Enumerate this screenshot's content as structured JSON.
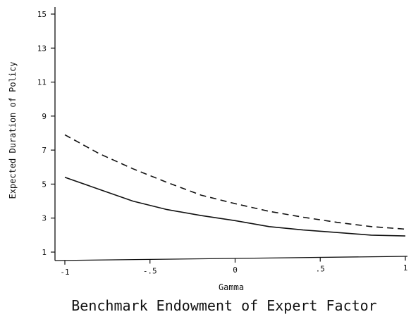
{
  "chart_data": {
    "type": "line",
    "xlabel": "Gamma",
    "ylabel": "Expected Duration of Policy",
    "caption": "Benchmark Endowment of Expert Factor",
    "xlim": [
      -1,
      1
    ],
    "ylim": [
      1,
      15
    ],
    "x_ticks": [
      -1,
      -0.5,
      0,
      0.5,
      1
    ],
    "x_tick_labels": [
      "-1",
      "-.5",
      "0",
      ".5",
      "1"
    ],
    "y_ticks": [
      1,
      3,
      5,
      7,
      9,
      11,
      13,
      15
    ],
    "y_tick_labels": [
      "1",
      "3",
      "5",
      "7",
      "9",
      "11",
      "13",
      "15"
    ],
    "grid": false,
    "series": [
      {
        "style": "solid",
        "color": "#111111",
        "x": [
          -1,
          -0.8,
          -0.6,
          -0.4,
          -0.2,
          0,
          0.2,
          0.4,
          0.6,
          0.8,
          1
        ],
        "y": [
          5.4,
          4.7,
          4.0,
          3.5,
          3.15,
          2.85,
          2.5,
          2.3,
          2.15,
          2.0,
          1.95
        ]
      },
      {
        "style": "dashed",
        "color": "#111111",
        "x": [
          -1,
          -0.8,
          -0.6,
          -0.4,
          -0.2,
          0,
          0.2,
          0.4,
          0.6,
          0.8,
          1
        ],
        "y": [
          7.9,
          6.8,
          5.9,
          5.1,
          4.35,
          3.85,
          3.4,
          3.05,
          2.75,
          2.5,
          2.35
        ]
      }
    ]
  }
}
